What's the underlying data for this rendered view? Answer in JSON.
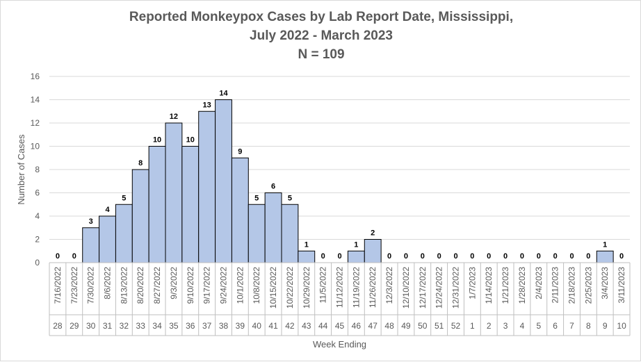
{
  "chart_data": {
    "type": "bar",
    "title_lines": [
      "Reported Monkeypox Cases by Lab Report Date, Mississippi,",
      "July 2022 - March 2023",
      "N = 109"
    ],
    "xlabel": "Week Ending",
    "ylabel": "Number of Cases",
    "ylim": [
      0,
      16
    ],
    "yticks": [
      0,
      2,
      4,
      6,
      8,
      10,
      12,
      14,
      16
    ],
    "grid": true,
    "legend": "none",
    "bar_color": "#b4c7e7",
    "bar_edge_color": "#000000",
    "categories": [
      "7/16/2022",
      "7/23/2022",
      "7/30/2022",
      "8/6/2022",
      "8/13/2022",
      "8/20/2022",
      "8/27/2022",
      "9/3/2022",
      "9/10/2022",
      "9/17/2022",
      "9/24/2022",
      "10/1/2022",
      "10/8/2022",
      "10/15/2022",
      "10/22/2022",
      "10/29/2022",
      "11/5/2022",
      "11/12/2022",
      "11/19/2022",
      "11/26/2022",
      "12/3/2022",
      "12/10/2022",
      "12/17/2022",
      "12/24/2022",
      "12/31/2022",
      "1/7/2023",
      "1/14/2023",
      "1/21/2023",
      "1/28/2023",
      "2/4/2023",
      "2/11/2023",
      "2/18/2023",
      "2/25/2023",
      "3/4/2023",
      "3/11/2023"
    ],
    "week_numbers": [
      "28",
      "29",
      "30",
      "31",
      "32",
      "33",
      "34",
      "35",
      "36",
      "37",
      "38",
      "39",
      "40",
      "41",
      "42",
      "43",
      "44",
      "45",
      "46",
      "47",
      "48",
      "49",
      "50",
      "51",
      "52",
      "1",
      "2",
      "3",
      "4",
      "5",
      "6",
      "7",
      "8",
      "9",
      "10"
    ],
    "values": [
      0,
      0,
      3,
      4,
      5,
      8,
      10,
      12,
      10,
      13,
      14,
      9,
      5,
      6,
      5,
      1,
      0,
      0,
      1,
      2,
      0,
      0,
      0,
      0,
      0,
      0,
      0,
      0,
      0,
      0,
      0,
      0,
      0,
      1,
      0
    ]
  }
}
